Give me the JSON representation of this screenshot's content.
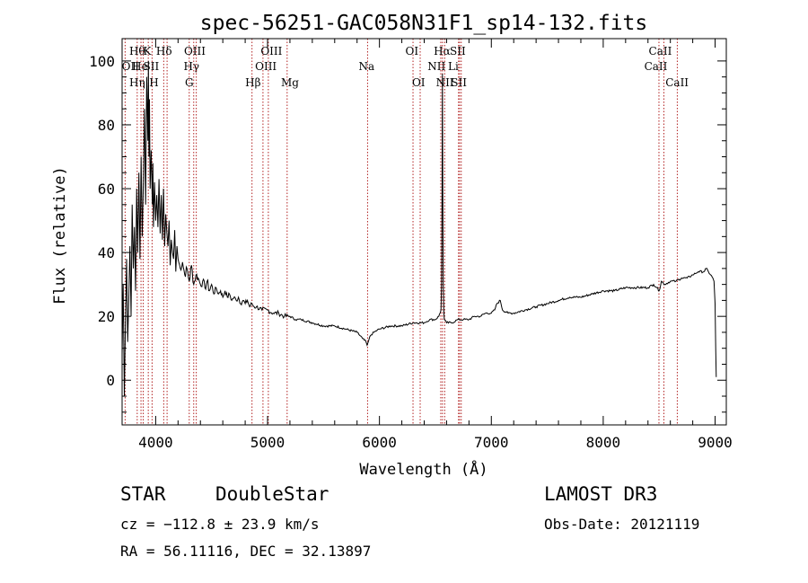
{
  "chart_data": {
    "type": "line",
    "title": "spec-56251-GAC058N31F1_sp14-132.fits",
    "xlabel": "Wavelength (Å)",
    "ylabel": "Flux (relative)",
    "xlim": [
      3700,
      9100
    ],
    "ylim": [
      -14,
      107
    ],
    "xticks": [
      4000,
      5000,
      6000,
      7000,
      8000,
      9000
    ],
    "yticks": [
      0,
      20,
      40,
      60,
      80,
      100
    ],
    "line_color": "#000000",
    "marker_color": "#b22222",
    "series": [
      {
        "name": "flux",
        "x": [
          3700,
          3710,
          3720,
          3730,
          3740,
          3750,
          3760,
          3770,
          3780,
          3790,
          3800,
          3810,
          3820,
          3830,
          3840,
          3850,
          3860,
          3870,
          3880,
          3890,
          3900,
          3910,
          3920,
          3930,
          3935,
          3940,
          3945,
          3950,
          3960,
          3970,
          3975,
          3980,
          3990,
          4000,
          4010,
          4020,
          4030,
          4040,
          4050,
          4060,
          4070,
          4080,
          4090,
          4100,
          4110,
          4120,
          4130,
          4140,
          4150,
          4160,
          4170,
          4180,
          4190,
          4200,
          4220,
          4240,
          4260,
          4280,
          4300,
          4320,
          4340,
          4360,
          4380,
          4400,
          4420,
          4440,
          4460,
          4480,
          4500,
          4520,
          4540,
          4560,
          4580,
          4600,
          4620,
          4640,
          4660,
          4680,
          4700,
          4720,
          4740,
          4760,
          4780,
          4800,
          4820,
          4840,
          4860,
          4880,
          4900,
          4950,
          5000,
          5050,
          5100,
          5150,
          5200,
          5250,
          5300,
          5400,
          5500,
          5600,
          5700,
          5800,
          5850,
          5880,
          5890,
          5900,
          5920,
          5950,
          6000,
          6100,
          6200,
          6300,
          6400,
          6450,
          6500,
          6530,
          6550,
          6555,
          6560,
          6563,
          6566,
          6570,
          6575,
          6580,
          6600,
          6650,
          6700,
          6750,
          6800,
          6850,
          6900,
          6950,
          7000,
          7030,
          7050,
          7080,
          7100,
          7150,
          7200,
          7300,
          7400,
          7500,
          7600,
          7700,
          7800,
          7900,
          8000,
          8100,
          8200,
          8300,
          8400,
          8450,
          8480,
          8500,
          8520,
          8550,
          8600,
          8650,
          8700,
          8750,
          8800,
          8850,
          8900,
          8920,
          8940,
          8960,
          8980,
          8990,
          9000,
          9005,
          9010
        ],
        "y": [
          8,
          30,
          -5,
          18,
          38,
          12,
          26,
          42,
          20,
          55,
          35,
          48,
          28,
          60,
          40,
          65,
          38,
          70,
          45,
          62,
          85,
          55,
          95,
          75,
          100,
          70,
          88,
          60,
          72,
          55,
          68,
          48,
          62,
          50,
          58,
          48,
          63,
          46,
          58,
          44,
          60,
          42,
          52,
          46,
          42,
          50,
          36,
          44,
          40,
          38,
          47,
          34,
          42,
          38,
          35,
          37,
          33,
          35,
          31,
          36,
          30,
          33,
          32,
          30,
          31,
          29,
          31,
          28,
          30,
          27,
          29,
          27,
          28,
          26,
          28,
          26,
          27,
          25,
          26,
          25,
          26,
          24,
          25,
          24,
          25,
          23,
          24,
          23,
          23,
          22,
          22,
          21,
          21,
          20,
          20,
          19,
          19,
          18,
          17,
          17,
          16,
          15,
          13,
          12,
          11,
          12,
          14,
          15,
          16,
          17,
          17,
          18,
          18,
          19,
          19,
          20,
          22,
          30,
          60,
          96,
          60,
          30,
          22,
          19,
          18,
          18,
          19,
          19,
          19,
          20,
          20,
          21,
          21,
          22,
          24,
          25,
          22,
          21,
          21,
          22,
          23,
          24,
          25,
          26,
          26,
          27,
          28,
          28,
          29,
          29,
          29,
          30,
          29,
          28,
          31,
          30,
          31,
          31,
          32,
          32,
          33,
          34,
          34,
          35,
          34,
          33,
          32,
          31,
          24,
          10,
          1
        ]
      }
    ],
    "line_markers": [
      {
        "x": 3835,
        "name": "Hθ",
        "row": 1,
        "lx": 3835
      },
      {
        "x": 3727,
        "name": "OII",
        "row": 2,
        "lx": 3775
      },
      {
        "x": 3869,
        "name": "He",
        "row": 2,
        "lx": 3860
      },
      {
        "x": 3889,
        "name": "Hη",
        "row": 3,
        "lx": 3835
      },
      {
        "x": 3934,
        "name": "K",
        "row": 1,
        "lx": 3925
      },
      {
        "x": 3968,
        "name": "H",
        "row": 3,
        "lx": 3985
      },
      {
        "x": 4072,
        "name": "SII",
        "row": 2,
        "lx": 3960
      },
      {
        "x": 4102,
        "name": "Hδ",
        "row": 1,
        "lx": 4075
      },
      {
        "x": 4300,
        "name": "G",
        "row": 3,
        "lx": 4300
      },
      {
        "x": 4340,
        "name": "Hγ",
        "row": 2,
        "lx": 4320
      },
      {
        "x": 4363,
        "name": "OIII",
        "row": 1,
        "lx": 4350
      },
      {
        "x": 4861,
        "name": "Hβ",
        "row": 3,
        "lx": 4870
      },
      {
        "x": 4959,
        "name": "OIII",
        "row": 2,
        "lx": 4985
      },
      {
        "x": 5007,
        "name": "OIII",
        "row": 1,
        "lx": 5035
      },
      {
        "x": 5175,
        "name": "Mg",
        "row": 3,
        "lx": 5200
      },
      {
        "x": 5894,
        "name": "Na",
        "row": 2,
        "lx": 5885
      },
      {
        "x": 6300,
        "name": "OI",
        "row": 1,
        "lx": 6290
      },
      {
        "x": 6364,
        "name": "OI",
        "row": 3,
        "lx": 6350
      },
      {
        "x": 6548,
        "name": "NII",
        "row": 2,
        "lx": 6510
      },
      {
        "x": 6563,
        "name": "Hα",
        "row": 1,
        "lx": 6560
      },
      {
        "x": 6583,
        "name": "NII",
        "row": 3,
        "lx": 6585
      },
      {
        "x": 6707,
        "name": "Li",
        "row": 2,
        "lx": 6660
      },
      {
        "x": 6716,
        "name": "SII",
        "row": 1,
        "lx": 6700
      },
      {
        "x": 6731,
        "name": "SII",
        "row": 3,
        "lx": 6710
      },
      {
        "x": 8498,
        "name": "CaII",
        "row": 2,
        "lx": 8470
      },
      {
        "x": 8542,
        "name": "CaII",
        "row": 1,
        "lx": 8510
      },
      {
        "x": 8662,
        "name": "CaII",
        "row": 3,
        "lx": 8660
      }
    ]
  },
  "info": {
    "class": "STAR",
    "subclass": "DoubleStar",
    "survey": "LAMOST DR3",
    "redshift": "cz = −112.8 ± 23.9 km/s",
    "obs_date": "Obs-Date: 20121119",
    "coords": "RA =  56.11116, DEC =  32.13897"
  }
}
